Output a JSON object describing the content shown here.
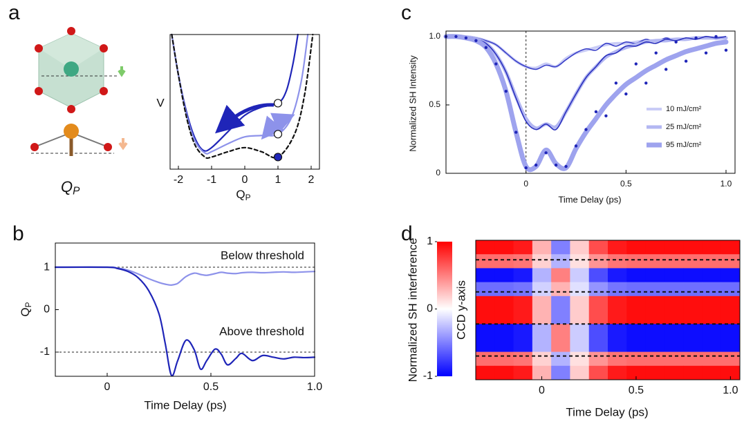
{
  "chart_data": [
    {
      "type": "line",
      "panel": "a",
      "diagram_label": "Q",
      "diagram_label_sub": "P",
      "x_label": "Q",
      "x_label_sub": "P",
      "y_label": "V",
      "xlim": [
        -2.25,
        2.25
      ],
      "ylim": [
        0,
        10
      ],
      "xticks": [
        -2,
        -1,
        0,
        1,
        2
      ],
      "series": [
        {
          "color": "#1f25b8",
          "x": [
            -2.2,
            -2,
            -1.75,
            -1.5,
            -1.25,
            -1,
            -0.5,
            0,
            0.5,
            1,
            1.25,
            1.45,
            1.6
          ],
          "values": [
            10,
            7,
            4.2,
            2.3,
            1.4,
            1.6,
            2.8,
            4,
            4.6,
            4.9,
            5.8,
            7.8,
            10
          ]
        },
        {
          "color": "#8d92ea",
          "x": [
            -2.2,
            -2,
            -1.75,
            -1.5,
            -1.2,
            -1,
            -0.5,
            0,
            0.5,
            1,
            1.4,
            1.7,
            1.9
          ],
          "values": [
            10,
            7,
            4,
            2.1,
            1.2,
            1.3,
            1.9,
            2.4,
            2.5,
            2.6,
            3.8,
            6.5,
            10
          ]
        },
        {
          "color": "#111111",
          "line_style": "dashed",
          "x": [
            -2.2,
            -2,
            -1.75,
            -1.5,
            -1.2,
            -1,
            -0.5,
            0,
            0.5,
            1,
            1.5,
            1.8,
            2.05
          ],
          "values": [
            10,
            7,
            3.8,
            1.8,
            0.9,
            0.9,
            1.3,
            1.6,
            1.3,
            0.9,
            2.6,
            5.5,
            10
          ]
        }
      ],
      "markers": [
        {
          "x": 1,
          "y": 4.9,
          "fill": "#ffffff"
        },
        {
          "x": 1,
          "y": 2.6,
          "fill": "#ffffff"
        },
        {
          "x": 1,
          "y": 0.9,
          "fill": "#1f25b8"
        }
      ]
    },
    {
      "type": "line",
      "panel": "b",
      "x_label": "Time Delay (ps)",
      "y_label": "Q",
      "y_label_sub": "P",
      "xlim": [
        -0.25,
        1.0
      ],
      "ylim": [
        -1.57,
        1.57
      ],
      "xticks": [
        0,
        0.5,
        {
          "value": 1.0,
          "label": "1.0"
        }
      ],
      "yticks": [
        -1,
        0,
        1
      ],
      "reference_lines": [
        1,
        -1
      ],
      "annotations": [
        "Below threshold",
        "Above threshold"
      ],
      "x": [
        -0.25,
        0,
        0.05,
        0.1,
        0.15,
        0.2,
        0.25,
        0.28,
        0.31,
        0.34,
        0.38,
        0.42,
        0.45,
        0.48,
        0.52,
        0.55,
        0.58,
        0.62,
        0.65,
        0.7,
        0.75,
        0.8,
        0.85,
        0.9,
        0.95,
        1.0
      ],
      "series": [
        {
          "color": "#8d92ea",
          "values": [
            1,
            1,
            0.98,
            0.93,
            0.84,
            0.73,
            0.64,
            0.6,
            0.58,
            0.62,
            0.78,
            0.86,
            0.83,
            0.81,
            0.85,
            0.88,
            0.86,
            0.85,
            0.87,
            0.88,
            0.87,
            0.88,
            0.89,
            0.88,
            0.89,
            0.9
          ]
        },
        {
          "color": "#1f25b8",
          "values": [
            1,
            1,
            0.97,
            0.9,
            0.75,
            0.45,
            -0.1,
            -0.8,
            -1.55,
            -1.2,
            -0.72,
            -0.95,
            -1.4,
            -1.2,
            -0.93,
            -1.05,
            -1.3,
            -1.15,
            -1.03,
            -1.2,
            -1.08,
            -1.12,
            -1.16,
            -1.12,
            -1.13,
            -1.12
          ]
        }
      ]
    },
    {
      "type": "line",
      "panel": "c",
      "x_label": "Time Delay (ps)",
      "y_label": "Normalized SH Intensity",
      "xlim": [
        -0.4,
        1.045
      ],
      "ylim": [
        0,
        1.04
      ],
      "xticks": [
        0,
        0.5,
        {
          "value": 1.0,
          "label": "1.0"
        }
      ],
      "yticks": [
        0,
        0.5,
        {
          "value": 1,
          "label": "1.0"
        }
      ],
      "vertical_lines": [
        0
      ],
      "legend": "right",
      "x": [
        -0.4,
        -0.35,
        -0.3,
        -0.25,
        -0.2,
        -0.15,
        -0.1,
        -0.05,
        0,
        0.05,
        0.1,
        0.15,
        0.2,
        0.25,
        0.3,
        0.35,
        0.4,
        0.45,
        0.5,
        0.55,
        0.6,
        0.65,
        0.7,
        0.75,
        0.8,
        0.85,
        0.9,
        0.95,
        1.0
      ],
      "series": [
        {
          "name": "10 mJ/cm²",
          "color": "#c9ccf6",
          "width": 4,
          "measured_color": "#3a40c8",
          "values": [
            1,
            1,
            1,
            0.99,
            0.97,
            0.94,
            0.88,
            0.82,
            0.78,
            0.77,
            0.8,
            0.78,
            0.84,
            0.88,
            0.9,
            0.92,
            0.94,
            0.95,
            0.95,
            0.96,
            0.97,
            0.97,
            0.98,
            0.98,
            0.98,
            0.99,
            0.99,
            0.99,
            0.99
          ],
          "measured": [
            1,
            1,
            1,
            0.99,
            0.97,
            0.94,
            0.88,
            0.82,
            0.78,
            0.76,
            0.79,
            0.78,
            0.83,
            0.88,
            0.91,
            0.9,
            0.95,
            0.93,
            0.96,
            0.95,
            0.98,
            0.96,
            0.99,
            0.97,
            0.99,
            0.98,
            1,
            0.98,
            1
          ]
        },
        {
          "name": "25 mJ/cm²",
          "color": "#b3b7f2",
          "width": 5,
          "measured_color": "#2a30bd",
          "values": [
            1,
            1,
            0.99,
            0.98,
            0.95,
            0.87,
            0.74,
            0.56,
            0.4,
            0.33,
            0.36,
            0.34,
            0.45,
            0.58,
            0.7,
            0.78,
            0.85,
            0.89,
            0.92,
            0.94,
            0.96,
            0.97,
            0.97,
            0.98,
            0.98,
            0.99,
            0.99,
            0.99,
            0.99
          ],
          "measured": [
            1,
            1,
            0.99,
            0.98,
            0.95,
            0.87,
            0.74,
            0.55,
            0.38,
            0.32,
            0.36,
            0.32,
            0.45,
            0.58,
            0.7,
            0.78,
            0.86,
            0.88,
            0.93,
            0.93,
            0.96,
            0.95,
            0.98,
            0.97,
            0.99,
            0.98,
            1,
            0.99,
            1
          ]
        },
        {
          "name": "95 mJ/cm²",
          "color": "#9ea3ee",
          "width": 7,
          "measured_color": "#1f25b8",
          "measured_style": "dots",
          "values": [
            1,
            1,
            0.99,
            0.97,
            0.92,
            0.8,
            0.6,
            0.3,
            0.05,
            0.05,
            0.17,
            0.07,
            0.04,
            0.18,
            0.3,
            0.4,
            0.5,
            0.58,
            0.65,
            0.7,
            0.75,
            0.79,
            0.83,
            0.86,
            0.89,
            0.91,
            0.93,
            0.95,
            0.96
          ],
          "measured": [
            1,
            1,
            0.99,
            0.97,
            0.92,
            0.8,
            0.6,
            0.3,
            0.04,
            0.06,
            0.15,
            0.06,
            0.05,
            0.2,
            0.32,
            0.45,
            0.42,
            0.66,
            0.58,
            0.8,
            0.66,
            0.88,
            0.76,
            0.96,
            0.82,
            0.99,
            0.88,
            1,
            0.9
          ]
        }
      ]
    },
    {
      "type": "heatmap",
      "panel": "d",
      "x_label": "Time Delay (ps)",
      "y_label": "CCD y-axis",
      "colorbar_label": "Normalized SH interference",
      "xlim": [
        -0.35,
        1.05
      ],
      "xticks": [
        0,
        0.5,
        {
          "value": 1.0,
          "label": "1.0"
        }
      ],
      "zlim": [
        -1,
        1
      ],
      "zticks": [
        -1,
        0,
        1
      ],
      "x": [
        -0.3,
        -0.2,
        -0.1,
        0,
        0.1,
        0.2,
        0.3,
        0.4,
        0.5,
        0.6,
        0.7,
        0.8,
        0.9,
        1.0
      ],
      "z": [
        [
          0.95,
          0.95,
          0.9,
          0.3,
          -0.5,
          0.2,
          0.7,
          0.9,
          0.95,
          0.95,
          0.95,
          0.95,
          0.95,
          0.95
        ],
        [
          0.57,
          0.57,
          0.54,
          0.18,
          -0.3,
          0.12,
          0.42,
          0.54,
          0.57,
          0.57,
          0.57,
          0.57,
          0.57,
          0.57
        ],
        [
          -0.95,
          -0.95,
          -0.9,
          -0.3,
          0.5,
          -0.2,
          -0.7,
          -0.9,
          -0.95,
          -0.95,
          -0.95,
          -0.95,
          -0.95,
          -0.95
        ],
        [
          -0.57,
          -0.57,
          -0.54,
          -0.18,
          0.3,
          -0.12,
          -0.42,
          -0.54,
          -0.57,
          -0.57,
          -0.57,
          -0.57,
          -0.57,
          -0.57
        ],
        [
          0.95,
          0.95,
          0.9,
          0.3,
          -0.5,
          0.2,
          0.7,
          0.9,
          0.95,
          0.95,
          0.95,
          0.95,
          0.95,
          0.95
        ],
        [
          0.95,
          0.95,
          0.9,
          0.3,
          -0.5,
          0.2,
          0.7,
          0.9,
          0.95,
          0.95,
          0.95,
          0.95,
          0.95,
          0.95
        ],
        [
          -0.95,
          -0.95,
          -0.9,
          -0.3,
          0.5,
          -0.2,
          -0.7,
          -0.9,
          -0.95,
          -0.95,
          -0.95,
          -0.95,
          -0.95,
          -0.95
        ],
        [
          -0.95,
          -0.95,
          -0.9,
          -0.3,
          0.5,
          -0.2,
          -0.7,
          -0.9,
          -0.95,
          -0.95,
          -0.95,
          -0.95,
          -0.95,
          -0.95
        ],
        [
          0.57,
          0.57,
          0.54,
          0.18,
          -0.3,
          0.12,
          0.42,
          0.54,
          0.57,
          0.57,
          0.57,
          0.57,
          0.57,
          0.57
        ],
        [
          0.95,
          0.95,
          0.9,
          0.3,
          -0.5,
          0.2,
          0.7,
          0.9,
          0.95,
          0.95,
          0.95,
          0.95,
          0.95,
          0.95
        ]
      ]
    }
  ]
}
